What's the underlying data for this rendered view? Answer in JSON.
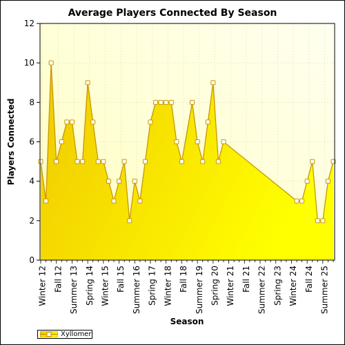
{
  "chart_data": {
    "type": "area",
    "title": "Average Players Connected By Season",
    "xlabel": "Season",
    "ylabel": "Players Connected",
    "ylim": [
      0,
      12
    ],
    "yticks": [
      "0",
      "2",
      "4",
      "6",
      "8",
      "10",
      "12"
    ],
    "x_tick_labels": [
      "Winter 12",
      "Fall 12",
      "Summer 13",
      "Spring 14",
      "Winter 15",
      "Fall 15",
      "Summer 16",
      "Spring 17",
      "Winter 18",
      "Fall 18",
      "Summer 19",
      "Spring 20",
      "Winter 21",
      "Fall 21",
      "Summer 22",
      "Spring 23",
      "Winter 24",
      "Fall 24",
      "Summer 25"
    ],
    "grid": true,
    "legend_position": "bottom-left",
    "colors": {
      "fill_light": "#FFFF00",
      "fill_dark": "#F0C800",
      "line": "#C89600",
      "marker_fill": "#FFFFFF",
      "plot_bg": "#FFFFE0",
      "grid": "#C8C8A0"
    },
    "series": [
      {
        "name": "Xyllomer",
        "points": [
          [
            0,
            5
          ],
          [
            1,
            3
          ],
          [
            2,
            10
          ],
          [
            3,
            5
          ],
          [
            4,
            6
          ],
          [
            5,
            7
          ],
          [
            6,
            7
          ],
          [
            7,
            5
          ],
          [
            8,
            5
          ],
          [
            9,
            9
          ],
          [
            10,
            7
          ],
          [
            11,
            5
          ],
          [
            12,
            5
          ],
          [
            13,
            4
          ],
          [
            14,
            3
          ],
          [
            15,
            4
          ],
          [
            16,
            5
          ],
          [
            17,
            2
          ],
          [
            18,
            4
          ],
          [
            19,
            3
          ],
          [
            20,
            5
          ],
          [
            21,
            7
          ],
          [
            22,
            8
          ],
          [
            23,
            8
          ],
          [
            24,
            8
          ],
          [
            25,
            8
          ],
          [
            26,
            6
          ],
          [
            27,
            5
          ],
          [
            29,
            8
          ],
          [
            30,
            6
          ],
          [
            31,
            5
          ],
          [
            32,
            7
          ],
          [
            33,
            9
          ],
          [
            34,
            5
          ],
          [
            35,
            6
          ],
          [
            49,
            3
          ],
          [
            50,
            3
          ],
          [
            51,
            4
          ],
          [
            52,
            5
          ],
          [
            53,
            2
          ],
          [
            54,
            2
          ],
          [
            55,
            4
          ],
          [
            56,
            5
          ]
        ]
      }
    ]
  }
}
